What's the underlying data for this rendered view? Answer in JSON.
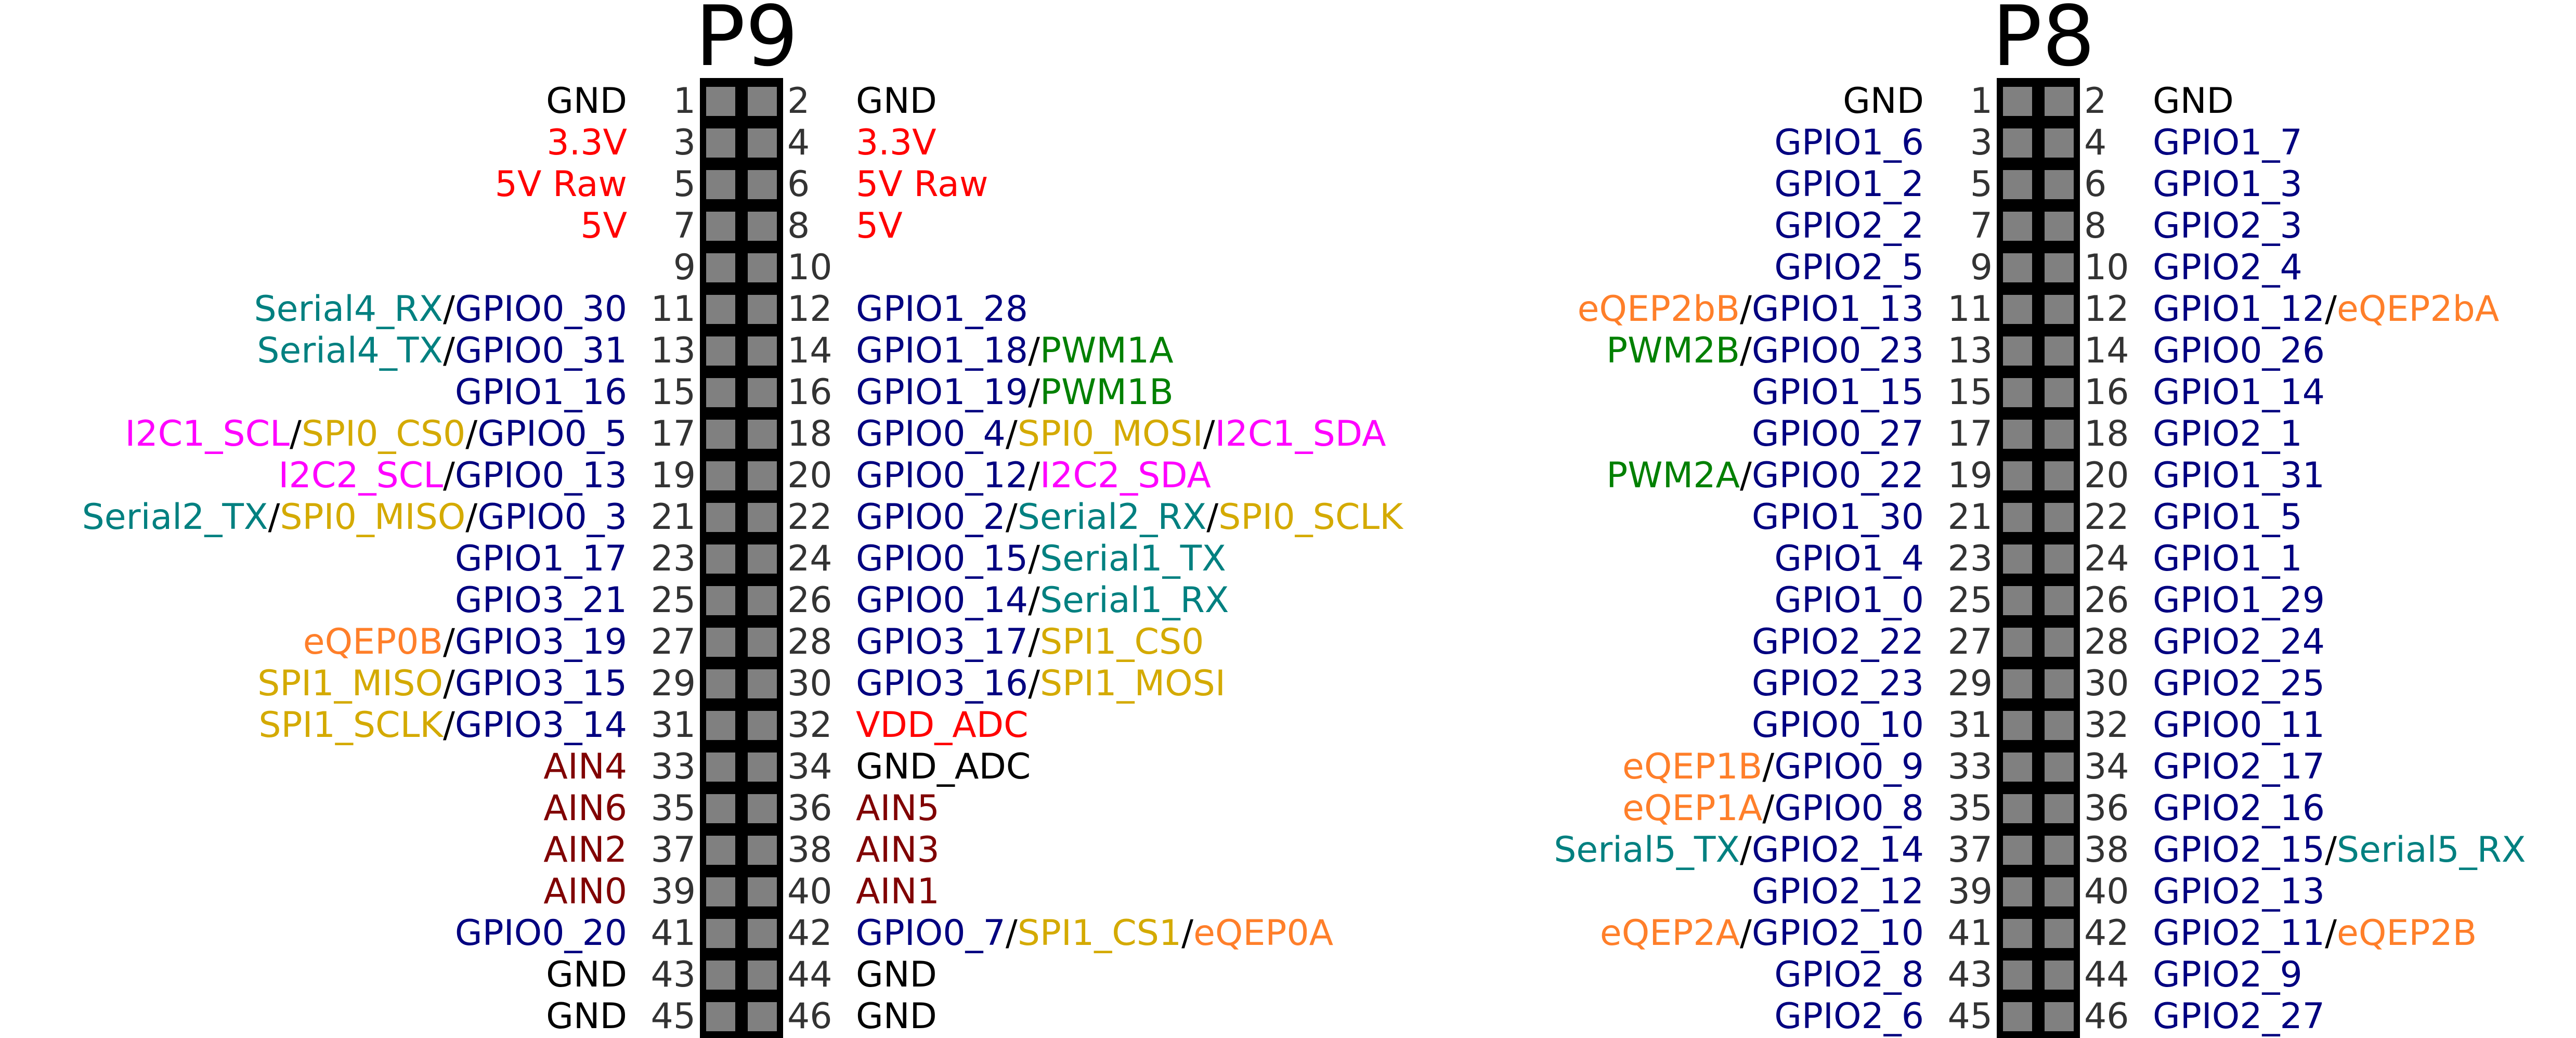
{
  "colors": {
    "gnd": "#000000",
    "power": "#ff0000",
    "gpio": "#000080",
    "serial": "#008080",
    "pwm": "#008000",
    "i2c": "#ff00ff",
    "spi": "#d4aa00",
    "eqep": "#ff7f2a",
    "ain": "#800000",
    "sep": "#000000"
  },
  "headers": [
    {
      "title": "P9",
      "pins": [
        [
          1,
          [
            [
              "GND",
              "gnd"
            ]
          ],
          2,
          [
            [
              "GND",
              "gnd"
            ]
          ]
        ],
        [
          3,
          [
            [
              "3.3V",
              "power"
            ]
          ],
          4,
          [
            [
              "3.3V",
              "power"
            ]
          ]
        ],
        [
          5,
          [
            [
              "5V Raw",
              "power"
            ]
          ],
          6,
          [
            [
              "5V Raw",
              "power"
            ]
          ]
        ],
        [
          7,
          [
            [
              "5V",
              "power"
            ]
          ],
          8,
          [
            [
              "5V",
              "power"
            ]
          ]
        ],
        [
          9,
          [],
          10,
          []
        ],
        [
          11,
          [
            [
              "Serial4_RX",
              "serial"
            ],
            [
              "GPIO0_30",
              "gpio"
            ]
          ],
          12,
          [
            [
              "GPIO1_28",
              "gpio"
            ]
          ]
        ],
        [
          13,
          [
            [
              "Serial4_TX",
              "serial"
            ],
            [
              "GPIO0_31",
              "gpio"
            ]
          ],
          14,
          [
            [
              "GPIO1_18",
              "gpio"
            ],
            [
              "PWM1A",
              "pwm"
            ]
          ]
        ],
        [
          15,
          [
            [
              "GPIO1_16",
              "gpio"
            ]
          ],
          16,
          [
            [
              "GPIO1_19",
              "gpio"
            ],
            [
              "PWM1B",
              "pwm"
            ]
          ]
        ],
        [
          17,
          [
            [
              "I2C1_SCL",
              "i2c"
            ],
            [
              "SPI0_CS0",
              "spi"
            ],
            [
              "GPIO0_5",
              "gpio"
            ]
          ],
          18,
          [
            [
              "GPIO0_4",
              "gpio"
            ],
            [
              "SPI0_MOSI",
              "spi"
            ],
            [
              "I2C1_SDA",
              "i2c"
            ]
          ]
        ],
        [
          19,
          [
            [
              "I2C2_SCL",
              "i2c"
            ],
            [
              "GPIO0_13",
              "gpio"
            ]
          ],
          20,
          [
            [
              "GPIO0_12",
              "gpio"
            ],
            [
              "I2C2_SDA",
              "i2c"
            ]
          ]
        ],
        [
          21,
          [
            [
              "Serial2_TX",
              "serial"
            ],
            [
              "SPI0_MISO",
              "spi"
            ],
            [
              "GPIO0_3",
              "gpio"
            ]
          ],
          22,
          [
            [
              "GPIO0_2",
              "gpio"
            ],
            [
              "Serial2_RX",
              "serial"
            ],
            [
              "SPI0_SCLK",
              "spi"
            ]
          ]
        ],
        [
          23,
          [
            [
              "GPIO1_17",
              "gpio"
            ]
          ],
          24,
          [
            [
              "GPIO0_15",
              "gpio"
            ],
            [
              "Serial1_TX",
              "serial"
            ]
          ]
        ],
        [
          25,
          [
            [
              "GPIO3_21",
              "gpio"
            ]
          ],
          26,
          [
            [
              "GPIO0_14",
              "gpio"
            ],
            [
              "Serial1_RX",
              "serial"
            ]
          ]
        ],
        [
          27,
          [
            [
              "eQEP0B",
              "eqep"
            ],
            [
              "GPIO3_19",
              "gpio"
            ]
          ],
          28,
          [
            [
              "GPIO3_17",
              "gpio"
            ],
            [
              "SPI1_CS0",
              "spi"
            ]
          ]
        ],
        [
          29,
          [
            [
              "SPI1_MISO",
              "spi"
            ],
            [
              "GPIO3_15",
              "gpio"
            ]
          ],
          30,
          [
            [
              "GPIO3_16",
              "gpio"
            ],
            [
              "SPI1_MOSI",
              "spi"
            ]
          ]
        ],
        [
          31,
          [
            [
              "SPI1_SCLK",
              "spi"
            ],
            [
              "GPIO3_14",
              "gpio"
            ]
          ],
          32,
          [
            [
              "VDD_ADC",
              "power"
            ]
          ]
        ],
        [
          33,
          [
            [
              "AIN4",
              "ain"
            ]
          ],
          34,
          [
            [
              "GND_ADC",
              "gnd"
            ]
          ]
        ],
        [
          35,
          [
            [
              "AIN6",
              "ain"
            ]
          ],
          36,
          [
            [
              "AIN5",
              "ain"
            ]
          ]
        ],
        [
          37,
          [
            [
              "AIN2",
              "ain"
            ]
          ],
          38,
          [
            [
              "AIN3",
              "ain"
            ]
          ]
        ],
        [
          39,
          [
            [
              "AIN0",
              "ain"
            ]
          ],
          40,
          [
            [
              "AIN1",
              "ain"
            ]
          ]
        ],
        [
          41,
          [
            [
              "GPIO0_20",
              "gpio"
            ]
          ],
          42,
          [
            [
              "GPIO0_7",
              "gpio"
            ],
            [
              "SPI1_CS1",
              "spi"
            ],
            [
              "eQEP0A",
              "eqep"
            ]
          ]
        ],
        [
          43,
          [
            [
              "GND",
              "gnd"
            ]
          ],
          44,
          [
            [
              "GND",
              "gnd"
            ]
          ]
        ],
        [
          45,
          [
            [
              "GND",
              "gnd"
            ]
          ],
          46,
          [
            [
              "GND",
              "gnd"
            ]
          ]
        ]
      ]
    },
    {
      "title": "P8",
      "pins": [
        [
          1,
          [
            [
              "GND",
              "gnd"
            ]
          ],
          2,
          [
            [
              "GND",
              "gnd"
            ]
          ]
        ],
        [
          3,
          [
            [
              "GPIO1_6",
              "gpio"
            ]
          ],
          4,
          [
            [
              "GPIO1_7",
              "gpio"
            ]
          ]
        ],
        [
          5,
          [
            [
              "GPIO1_2",
              "gpio"
            ]
          ],
          6,
          [
            [
              "GPIO1_3",
              "gpio"
            ]
          ]
        ],
        [
          7,
          [
            [
              "GPIO2_2",
              "gpio"
            ]
          ],
          8,
          [
            [
              "GPIO2_3",
              "gpio"
            ]
          ]
        ],
        [
          9,
          [
            [
              "GPIO2_5",
              "gpio"
            ]
          ],
          10,
          [
            [
              "GPIO2_4",
              "gpio"
            ]
          ]
        ],
        [
          11,
          [
            [
              "eQEP2bB",
              "eqep"
            ],
            [
              "GPIO1_13",
              "gpio"
            ]
          ],
          12,
          [
            [
              "GPIO1_12",
              "gpio"
            ],
            [
              "eQEP2bA",
              "eqep"
            ]
          ]
        ],
        [
          13,
          [
            [
              "PWM2B",
              "pwm"
            ],
            [
              "GPIO0_23",
              "gpio"
            ]
          ],
          14,
          [
            [
              "GPIO0_26",
              "gpio"
            ]
          ]
        ],
        [
          15,
          [
            [
              "GPIO1_15",
              "gpio"
            ]
          ],
          16,
          [
            [
              "GPIO1_14",
              "gpio"
            ]
          ]
        ],
        [
          17,
          [
            [
              "GPIO0_27",
              "gpio"
            ]
          ],
          18,
          [
            [
              "GPIO2_1",
              "gpio"
            ]
          ]
        ],
        [
          19,
          [
            [
              "PWM2A",
              "pwm"
            ],
            [
              "GPIO0_22",
              "gpio"
            ]
          ],
          20,
          [
            [
              "GPIO1_31",
              "gpio"
            ]
          ]
        ],
        [
          21,
          [
            [
              "GPIO1_30",
              "gpio"
            ]
          ],
          22,
          [
            [
              "GPIO1_5",
              "gpio"
            ]
          ]
        ],
        [
          23,
          [
            [
              "GPIO1_4",
              "gpio"
            ]
          ],
          24,
          [
            [
              "GPIO1_1",
              "gpio"
            ]
          ]
        ],
        [
          25,
          [
            [
              "GPIO1_0",
              "gpio"
            ]
          ],
          26,
          [
            [
              "GPIO1_29",
              "gpio"
            ]
          ]
        ],
        [
          27,
          [
            [
              "GPIO2_22",
              "gpio"
            ]
          ],
          28,
          [
            [
              "GPIO2_24",
              "gpio"
            ]
          ]
        ],
        [
          29,
          [
            [
              "GPIO2_23",
              "gpio"
            ]
          ],
          30,
          [
            [
              "GPIO2_25",
              "gpio"
            ]
          ]
        ],
        [
          31,
          [
            [
              "GPIO0_10",
              "gpio"
            ]
          ],
          32,
          [
            [
              "GPIO0_11",
              "gpio"
            ]
          ]
        ],
        [
          33,
          [
            [
              "eQEP1B",
              "eqep"
            ],
            [
              "GPIO0_9",
              "gpio"
            ]
          ],
          34,
          [
            [
              "GPIO2_17",
              "gpio"
            ]
          ]
        ],
        [
          35,
          [
            [
              "eQEP1A",
              "eqep"
            ],
            [
              "GPIO0_8",
              "gpio"
            ]
          ],
          36,
          [
            [
              "GPIO2_16",
              "gpio"
            ]
          ]
        ],
        [
          37,
          [
            [
              "Serial5_TX",
              "serial"
            ],
            [
              "GPIO2_14",
              "gpio"
            ]
          ],
          38,
          [
            [
              "GPIO2_15",
              "gpio"
            ],
            [
              "Serial5_RX",
              "serial"
            ]
          ]
        ],
        [
          39,
          [
            [
              "GPIO2_12",
              "gpio"
            ]
          ],
          40,
          [
            [
              "GPIO2_13",
              "gpio"
            ]
          ]
        ],
        [
          41,
          [
            [
              "eQEP2A",
              "eqep"
            ],
            [
              "GPIO2_10",
              "gpio"
            ]
          ],
          42,
          [
            [
              "GPIO2_11",
              "gpio"
            ],
            [
              "eQEP2B",
              "eqep"
            ]
          ]
        ],
        [
          43,
          [
            [
              "GPIO2_8",
              "gpio"
            ]
          ],
          44,
          [
            [
              "GPIO2_9",
              "gpio"
            ]
          ]
        ],
        [
          45,
          [
            [
              "GPIO2_6",
              "gpio"
            ]
          ],
          46,
          [
            [
              "GPIO2_27",
              "gpio"
            ]
          ]
        ]
      ]
    }
  ]
}
